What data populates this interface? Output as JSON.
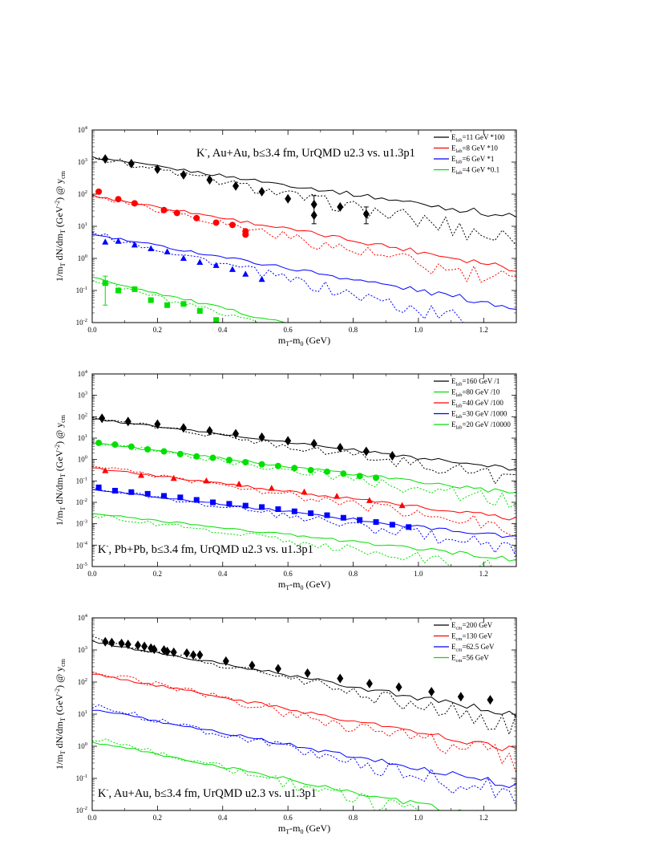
{
  "chart_data": [
    {
      "type": "line",
      "title": "K-, Au+Au, b≤3.4 fm, UrQMD u2.3 vs. u1.3p1",
      "title_parts": {
        "sym": "K",
        "sup": "-",
        "rest": ", Au+Au, b≤3.4 fm, UrQMD u2.3 vs. u1.3p1"
      },
      "title_position": "top",
      "xlabel": "mT-m0 (GeV)",
      "xlabel_parts": {
        "a": "m",
        "a_sub": "T",
        "b": "-m",
        "b_sub": "0",
        "c": " (GeV)"
      },
      "ylabel": "1/mT dN/dmT (GeV^-2) @ ycm",
      "ylabel_parts": {
        "a": "1/m",
        "a_sub": "T",
        "b": " dN/dm",
        "b_sub": "T",
        "c": " (GeV",
        "c_sup": "-2",
        "d": ") @ y",
        "d_sub": "cm"
      },
      "xlim": [
        0,
        1.3
      ],
      "ylog": true,
      "ylim_exp": [
        -2,
        4
      ],
      "xticks": [
        "0.0",
        "0.2",
        "0.4",
        "0.6",
        "0.8",
        "1.0",
        "1.2"
      ],
      "yticks": [
        "10-2",
        "10-1",
        "100",
        "101",
        "102",
        "103",
        "104"
      ],
      "legend_position": "top-right",
      "legend": [
        {
          "pre": "E",
          "sub": "lab",
          "post": "=11 GeV *100",
          "color": "#000000"
        },
        {
          "pre": "E",
          "sub": "lab",
          "post": "=8 GeV *10",
          "color": "#ff0000"
        },
        {
          "pre": "E",
          "sub": "lab",
          "post": "=6 GeV *1",
          "color": "#0000ff"
        },
        {
          "pre": "E",
          "sub": "lab",
          "post": "=4 GeV *0.1",
          "color": "#00e000"
        }
      ],
      "series": [
        {
          "color": "#000000",
          "marker": "diamond",
          "solid": {
            "v0": 1400,
            "slope": 3.3
          },
          "dashed": {
            "v0": 1500,
            "slope": 4.6
          },
          "points": [
            [
              0.04,
              1250
            ],
            [
              0.12,
              900
            ],
            [
              0.2,
              600
            ],
            [
              0.28,
              400
            ],
            [
              0.36,
              280
            ],
            [
              0.44,
              180
            ],
            [
              0.52,
              120
            ],
            [
              0.6,
              72
            ],
            [
              0.68,
              22
            ],
            [
              0.68,
              48
            ],
            [
              0.76,
              40
            ],
            [
              0.84,
              24
            ]
          ],
          "errors": [
            [
              0.68,
              12,
              90
            ],
            [
              0.84,
              12,
              40
            ]
          ]
        },
        {
          "color": "#ff0000",
          "marker": "circle",
          "solid": {
            "v0": 90,
            "slope": 4.0
          },
          "dashed": {
            "v0": 95,
            "slope": 5.0
          },
          "points": [
            [
              0.02,
              120
            ],
            [
              0.08,
              70
            ],
            [
              0.13,
              52
            ],
            [
              0.22,
              32
            ],
            [
              0.26,
              26
            ],
            [
              0.32,
              18
            ],
            [
              0.38,
              13
            ],
            [
              0.43,
              11
            ],
            [
              0.47,
              7
            ],
            [
              0.47,
              5.5
            ]
          ]
        },
        {
          "color": "#0000ff",
          "marker": "triangle",
          "solid": {
            "v0": 5.5,
            "slope": 4.0
          },
          "dashed": {
            "v0": 6.0,
            "slope": 5.5
          },
          "points": [
            [
              0.04,
              3.2
            ],
            [
              0.08,
              3.4
            ],
            [
              0.13,
              2.6
            ],
            [
              0.18,
              2.0
            ],
            [
              0.23,
              1.6
            ],
            [
              0.28,
              1.0
            ],
            [
              0.33,
              0.75
            ],
            [
              0.38,
              0.6
            ],
            [
              0.43,
              0.45
            ],
            [
              0.47,
              0.32
            ],
            [
              0.52,
              0.22
            ]
          ]
        },
        {
          "color": "#00e000",
          "marker": "square",
          "solid": {
            "v0": 0.25,
            "slope": 5.5
          },
          "dashed": {
            "v0": 0.22,
            "slope": 6.5
          },
          "points": [
            [
              0.04,
              0.17
            ],
            [
              0.08,
              0.1
            ],
            [
              0.13,
              0.11
            ],
            [
              0.18,
              0.05
            ],
            [
              0.23,
              0.035
            ],
            [
              0.28,
              0.038
            ],
            [
              0.33,
              0.023
            ],
            [
              0.38,
              0.012
            ]
          ],
          "errors": [
            [
              0.04,
              0.035,
              0.28
            ]
          ]
        }
      ]
    },
    {
      "type": "line",
      "title": "K-, Pb+Pb, b≤3.4 fm, UrQMD u2.3 vs. u1.3p1",
      "title_parts": {
        "sym": "K",
        "sup": "-",
        "rest": ", Pb+Pb, b≤3.4 fm, UrQMD u2.3 vs. u1.3p1"
      },
      "title_position": "bottom-left",
      "xlabel": "mT-m0 (GeV)",
      "xlabel_parts": {
        "a": "m",
        "a_sub": "T",
        "b": "-m",
        "b_sub": "0",
        "c": " (GeV)"
      },
      "ylabel": "1/mT dN/dmT (GeV^-2) @ ycm",
      "ylabel_parts": {
        "a": "1/m",
        "a_sub": "T",
        "b": " dN/dm",
        "b_sub": "T",
        "c": " (GeV",
        "c_sup": "-2",
        "d": ") @ y",
        "d_sub": "cm"
      },
      "xlim": [
        0,
        1.3
      ],
      "ylog": true,
      "ylim_exp": [
        -5,
        4
      ],
      "xticks": [
        "0.0",
        "0.2",
        "0.4",
        "0.6",
        "0.8",
        "1.0",
        "1.2"
      ],
      "yticks": [
        "10-5",
        "10-4",
        "10-3",
        "10-2",
        "10-1",
        "100",
        "101",
        "102",
        "103",
        "104"
      ],
      "legend_position": "top-right",
      "legend": [
        {
          "pre": "E",
          "sub": "lab",
          "post": "=160 GeV /1",
          "color": "#000000"
        },
        {
          "pre": "E",
          "sub": "lab",
          "post": "=80 GeV /10",
          "color": "#00e000"
        },
        {
          "pre": "E",
          "sub": "lab",
          "post": "=40 GeV /100",
          "color": "#ff0000"
        },
        {
          "pre": "E",
          "sub": "lab",
          "post": "=30 GeV /1000",
          "color": "#0000ff"
        },
        {
          "pre": "E",
          "sub": "lab",
          "post": "=20 GeV /10000",
          "color": "#00e000"
        }
      ],
      "series": [
        {
          "color": "#000000",
          "marker": "diamond",
          "solid": {
            "v0": 80,
            "slope": 4.2
          },
          "dashed": {
            "v0": 90,
            "slope": 5.0
          },
          "points": [
            [
              0.03,
              85
            ],
            [
              0.11,
              60
            ],
            [
              0.2,
              45
            ],
            [
              0.28,
              30
            ],
            [
              0.36,
              22
            ],
            [
              0.44,
              16
            ],
            [
              0.52,
              11
            ],
            [
              0.6,
              7.5
            ],
            [
              0.68,
              5.5
            ],
            [
              0.76,
              3.6
            ],
            [
              0.84,
              2.4
            ],
            [
              0.92,
              1.5
            ]
          ]
        },
        {
          "color": "#00e000",
          "marker": "circle",
          "solid": {
            "v0": 6.0,
            "slope": 4.2
          },
          "dashed": {
            "v0": 6.5,
            "slope": 5.0
          },
          "points": [
            [
              0.02,
              6.0
            ],
            [
              0.07,
              5.0
            ],
            [
              0.12,
              4.0
            ],
            [
              0.17,
              3.0
            ],
            [
              0.22,
              2.4
            ],
            [
              0.27,
              1.8
            ],
            [
              0.32,
              1.4
            ],
            [
              0.37,
              1.2
            ],
            [
              0.42,
              0.95
            ],
            [
              0.47,
              0.75
            ],
            [
              0.52,
              0.6
            ],
            [
              0.57,
              0.5
            ],
            [
              0.62,
              0.4
            ],
            [
              0.67,
              0.32
            ],
            [
              0.72,
              0.27
            ],
            [
              0.77,
              0.22
            ],
            [
              0.82,
              0.17
            ],
            [
              0.87,
              0.14
            ]
          ]
        },
        {
          "color": "#ff0000",
          "marker": "triangle",
          "solid": {
            "v0": 0.4,
            "slope": 4.2
          },
          "dashed": {
            "v0": 0.5,
            "slope": 5.2
          },
          "points": [
            [
              0.04,
              0.3
            ],
            [
              0.15,
              0.18
            ],
            [
              0.25,
              0.13
            ],
            [
              0.35,
              0.1
            ],
            [
              0.45,
              0.07
            ],
            [
              0.55,
              0.045
            ],
            [
              0.65,
              0.03
            ],
            [
              0.75,
              0.019
            ],
            [
              0.85,
              0.012
            ],
            [
              0.95,
              0.007
            ]
          ]
        },
        {
          "color": "#0000ff",
          "marker": "square",
          "solid": {
            "v0": 0.04,
            "slope": 4.0
          },
          "dashed": {
            "v0": 0.045,
            "slope": 5.0
          },
          "points": [
            [
              0.02,
              0.05
            ],
            [
              0.07,
              0.035
            ],
            [
              0.12,
              0.03
            ],
            [
              0.17,
              0.025
            ],
            [
              0.22,
              0.02
            ],
            [
              0.27,
              0.017
            ],
            [
              0.32,
              0.013
            ],
            [
              0.37,
              0.01
            ],
            [
              0.42,
              0.0085
            ],
            [
              0.47,
              0.007
            ],
            [
              0.52,
              0.006
            ],
            [
              0.57,
              0.0048
            ],
            [
              0.62,
              0.0038
            ],
            [
              0.67,
              0.0031
            ],
            [
              0.72,
              0.0025
            ],
            [
              0.77,
              0.0019
            ],
            [
              0.82,
              0.0015
            ],
            [
              0.87,
              0.0012
            ],
            [
              0.92,
              0.0009
            ],
            [
              0.97,
              0.0007
            ]
          ]
        },
        {
          "color": "#00e000",
          "marker": null,
          "solid": {
            "v0": 0.003,
            "slope": 3.8
          },
          "dashed": {
            "v0": 0.0025,
            "slope": 4.6
          },
          "points": []
        }
      ]
    },
    {
      "type": "line",
      "title": "K-, Au+Au, b≤3.4 fm, UrQMD u2.3 vs. u1.3p1",
      "title_parts": {
        "sym": "K",
        "sup": "-",
        "rest": ", Au+Au, b≤3.4 fm, UrQMD u2.3 vs. u1.3p1"
      },
      "title_position": "bottom-left",
      "xlabel": "mT-m0 (GeV)",
      "xlabel_parts": {
        "a": "m",
        "a_sub": "T",
        "b": "-m",
        "b_sub": "0",
        "c": " (GeV)"
      },
      "ylabel": "1/mT dN/dmT (GeV^-2) @ ycm",
      "ylabel_parts": {
        "a": "1/m",
        "a_sub": "T",
        "b": " dN/dm",
        "b_sub": "T",
        "c": " (GeV",
        "c_sup": "-2",
        "d": ") @ y",
        "d_sub": "cm"
      },
      "xlim": [
        0,
        1.3
      ],
      "ylog": true,
      "ylim_exp": [
        -2,
        4
      ],
      "xticks": [
        "0.0",
        "0.2",
        "0.4",
        "0.6",
        "0.8",
        "1.0",
        "1.2"
      ],
      "yticks": [
        "10-2",
        "10-1",
        "100",
        "101",
        "102",
        "103",
        "104"
      ],
      "legend_position": "top-right",
      "legend": [
        {
          "pre": "E",
          "sub": "cm",
          "post": "=200 GeV",
          "color": "#000000"
        },
        {
          "pre": "E",
          "sub": "cm",
          "post": "=130 GeV",
          "color": "#ff0000"
        },
        {
          "pre": "E",
          "sub": "cm",
          "post": "=62.5 GeV",
          "color": "#0000ff"
        },
        {
          "pre": "E",
          "sub": "cm",
          "post": "=56 GeV",
          "color": "#00e000"
        }
      ],
      "series": [
        {
          "color": "#000000",
          "marker": "diamond",
          "solid": {
            "v0": 1800,
            "slope": 4.0
          },
          "dashed": {
            "v0": 2300,
            "slope": 4.8
          },
          "points": [
            [
              0.04,
              1800
            ],
            [
              0.06,
              1700
            ],
            [
              0.09,
              1600
            ],
            [
              0.11,
              1500
            ],
            [
              0.14,
              1400
            ],
            [
              0.16,
              1300
            ],
            [
              0.18,
              1150
            ],
            [
              0.19,
              1050
            ],
            [
              0.22,
              1000
            ],
            [
              0.23,
              900
            ],
            [
              0.25,
              850
            ],
            [
              0.29,
              800
            ],
            [
              0.31,
              700
            ],
            [
              0.33,
              700
            ],
            [
              0.41,
              450
            ],
            [
              0.49,
              330
            ],
            [
              0.57,
              260
            ],
            [
              0.66,
              190
            ],
            [
              0.76,
              130
            ],
            [
              0.85,
              90
            ],
            [
              0.94,
              70
            ],
            [
              1.04,
              50
            ],
            [
              1.13,
              35
            ],
            [
              1.22,
              28
            ]
          ]
        },
        {
          "color": "#ff0000",
          "marker": null,
          "solid": {
            "v0": 180,
            "slope": 4.2
          },
          "dashed": {
            "v0": 230,
            "slope": 5.0
          },
          "points": []
        },
        {
          "color": "#0000ff",
          "marker": null,
          "solid": {
            "v0": 14,
            "slope": 4.2
          },
          "dashed": {
            "v0": 18,
            "slope": 5.0
          },
          "points": []
        },
        {
          "color": "#00e000",
          "marker": null,
          "solid": {
            "v0": 1.4,
            "slope": 4.5
          },
          "dashed": {
            "v0": 1.8,
            "slope": 5.4
          },
          "points": []
        }
      ]
    }
  ]
}
